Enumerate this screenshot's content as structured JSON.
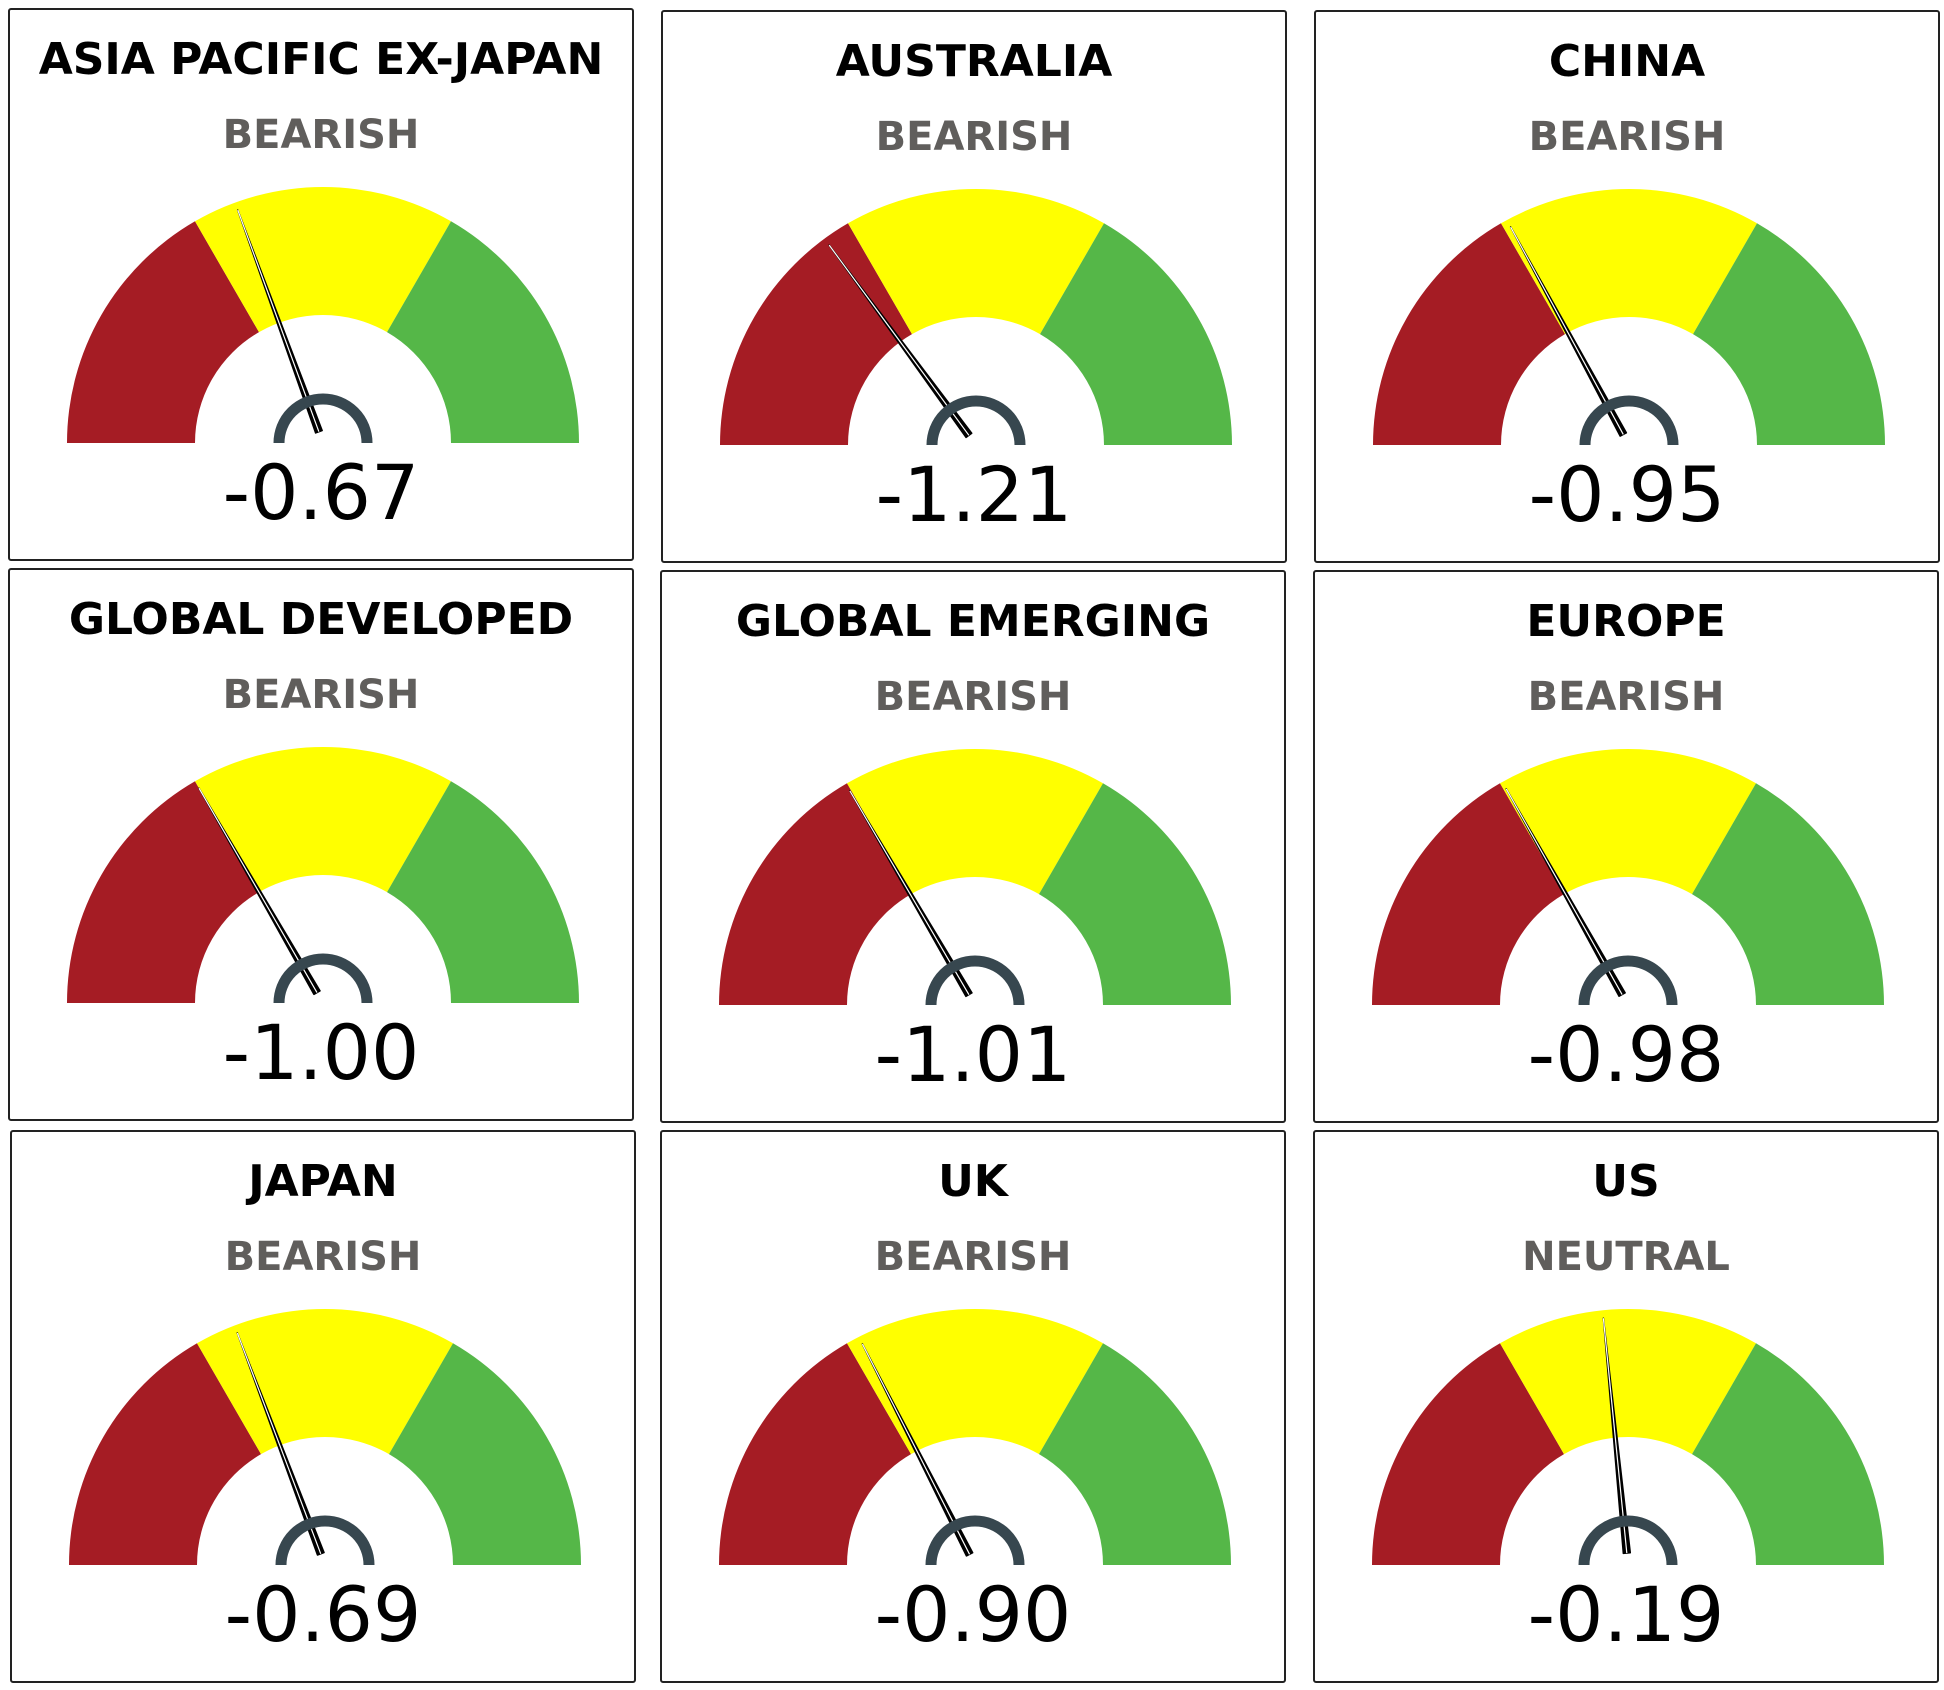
{
  "colors": {
    "bearish": "#a51c24",
    "neutral": "#ffff00",
    "bullish": "#55b748",
    "needle": "#000000",
    "hub": "#37474f",
    "status_text": "#605e5c"
  },
  "chart_data": [
    {
      "type": "gauge",
      "title": "ASIA PACIFIC EX-JAPAN",
      "status": "BEARISH",
      "value": -0.67,
      "value_label": "-0.67",
      "range": [
        -3,
        3
      ],
      "bands": [
        {
          "name": "BEARISH",
          "from": -3,
          "to": -1
        },
        {
          "name": "NEUTRAL",
          "from": -1,
          "to": 1
        },
        {
          "name": "BULLISH",
          "from": 1,
          "to": 3
        }
      ]
    },
    {
      "type": "gauge",
      "title": "AUSTRALIA",
      "status": "BEARISH",
      "value": -1.21,
      "value_label": "-1.21",
      "range": [
        -3,
        3
      ],
      "bands": [
        {
          "name": "BEARISH",
          "from": -3,
          "to": -1
        },
        {
          "name": "NEUTRAL",
          "from": -1,
          "to": 1
        },
        {
          "name": "BULLISH",
          "from": 1,
          "to": 3
        }
      ]
    },
    {
      "type": "gauge",
      "title": "CHINA",
      "status": "BEARISH",
      "value": -0.95,
      "value_label": "-0.95",
      "range": [
        -3,
        3
      ],
      "bands": [
        {
          "name": "BEARISH",
          "from": -3,
          "to": -1
        },
        {
          "name": "NEUTRAL",
          "from": -1,
          "to": 1
        },
        {
          "name": "BULLISH",
          "from": 1,
          "to": 3
        }
      ]
    },
    {
      "type": "gauge",
      "title": "GLOBAL DEVELOPED",
      "status": "BEARISH",
      "value": -1.0,
      "value_label": "-1.00",
      "range": [
        -3,
        3
      ],
      "bands": [
        {
          "name": "BEARISH",
          "from": -3,
          "to": -1
        },
        {
          "name": "NEUTRAL",
          "from": -1,
          "to": 1
        },
        {
          "name": "BULLISH",
          "from": 1,
          "to": 3
        }
      ]
    },
    {
      "type": "gauge",
      "title": "GLOBAL EMERGING",
      "status": "BEARISH",
      "value": -1.01,
      "value_label": "-1.01",
      "range": [
        -3,
        3
      ],
      "bands": [
        {
          "name": "BEARISH",
          "from": -3,
          "to": -1
        },
        {
          "name": "NEUTRAL",
          "from": -1,
          "to": 1
        },
        {
          "name": "BULLISH",
          "from": 1,
          "to": 3
        }
      ]
    },
    {
      "type": "gauge",
      "title": "EUROPE",
      "status": "BEARISH",
      "value": -0.98,
      "value_label": "-0.98",
      "range": [
        -3,
        3
      ],
      "bands": [
        {
          "name": "BEARISH",
          "from": -3,
          "to": -1
        },
        {
          "name": "NEUTRAL",
          "from": -1,
          "to": 1
        },
        {
          "name": "BULLISH",
          "from": 1,
          "to": 3
        }
      ]
    },
    {
      "type": "gauge",
      "title": "JAPAN",
      "status": "BEARISH",
      "value": -0.69,
      "value_label": "-0.69",
      "range": [
        -3,
        3
      ],
      "bands": [
        {
          "name": "BEARISH",
          "from": -3,
          "to": -1
        },
        {
          "name": "NEUTRAL",
          "from": -1,
          "to": 1
        },
        {
          "name": "BULLISH",
          "from": 1,
          "to": 3
        }
      ]
    },
    {
      "type": "gauge",
      "title": "UK",
      "status": "BEARISH",
      "value": -0.9,
      "value_label": "-0.90",
      "range": [
        -3,
        3
      ],
      "bands": [
        {
          "name": "BEARISH",
          "from": -3,
          "to": -1
        },
        {
          "name": "NEUTRAL",
          "from": -1,
          "to": 1
        },
        {
          "name": "BULLISH",
          "from": 1,
          "to": 3
        }
      ]
    },
    {
      "type": "gauge",
      "title": "US",
      "status": "NEUTRAL",
      "value": -0.19,
      "value_label": "-0.19",
      "range": [
        -3,
        3
      ],
      "bands": [
        {
          "name": "BEARISH",
          "from": -3,
          "to": -1
        },
        {
          "name": "NEUTRAL",
          "from": -1,
          "to": 1
        },
        {
          "name": "BULLISH",
          "from": 1,
          "to": 3
        }
      ]
    }
  ]
}
